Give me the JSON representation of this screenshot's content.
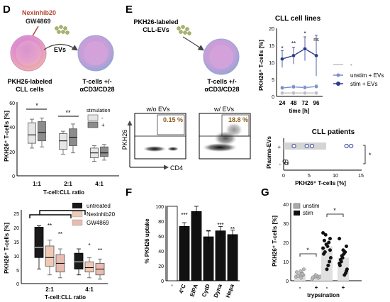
{
  "panels": {
    "D": {
      "letter": "D",
      "schematic": {
        "drug1": "Nexinhib20",
        "drug2": "GW4869",
        "evs": "EVs",
        "left_cell_label": [
          "PKH26-labeled",
          "CLL cells"
        ],
        "right_cell_label": [
          "T-cells +/-",
          "αCD3/CD28"
        ]
      },
      "top_chart": {
        "ylabel": "PKH26⁺ T-cells [%]",
        "yticks": [
          "0",
          "20",
          "40",
          "60"
        ],
        "categories": [
          "1:1",
          "2:1",
          "4:1"
        ],
        "legend_title": "stimulation",
        "legend": [
          "-",
          "+"
        ],
        "sig": [
          "*",
          "**"
        ],
        "xlabel": "T-cell:CLL ratio"
      },
      "bottom_chart": {
        "ylabel": "PKH26⁺ T-cells [%]",
        "yticks": [
          "0",
          "5",
          "10",
          "15",
          "20",
          "25"
        ],
        "categories": [
          "2:1",
          "4:1"
        ],
        "legend": [
          "untreated",
          "Nexinhib20",
          "GW4869"
        ],
        "sig": [
          "**",
          "**",
          "*",
          "**"
        ],
        "xlabel": "T-cell:CLL ratio"
      }
    },
    "E": {
      "letter": "E",
      "schematic": {
        "top_label": [
          "PKH26-labeled",
          "CLL-EVs"
        ],
        "cell_label": [
          "T-cells +/-",
          "αCD3/CD28"
        ]
      },
      "flow": {
        "titles": [
          "w/o EVs",
          "w/ EVs"
        ],
        "percents": [
          "0.15 %",
          "18.8 %"
        ],
        "ylabel": "PKH26",
        "xlabel": "CD4"
      },
      "cell_lines": {
        "title": "CLL cell lines",
        "ylabel": "PKH26⁺ T-cells [%]",
        "yticks": [
          "0",
          "5",
          "10",
          "15",
          "20"
        ],
        "xticks": [
          "24",
          "48",
          "72",
          "96"
        ],
        "xlabel": "time [h]",
        "sig": [
          "*",
          "**",
          "*",
          "ns"
        ],
        "legend": [
          "-",
          "unstim + EVs",
          "stim + EVs"
        ]
      },
      "patients": {
        "title": "CLL patients",
        "ylabel": "Plasma-EVs",
        "row_labels": [
          "+",
          "-"
        ],
        "xticks": [
          "0",
          "5",
          "10",
          "15"
        ],
        "xlabel": "PKH26⁺ T-cells [%]",
        "sig": "*"
      }
    },
    "F": {
      "letter": "F",
      "ylabel": "% PKH26 uptake",
      "yticks": [
        "0",
        "20",
        "40",
        "60",
        "80",
        "100"
      ],
      "categories": [
        "-",
        "4°C",
        "EIPA",
        "CytD",
        "Dyna",
        "Hepa"
      ],
      "sig": [
        "***",
        "",
        "**",
        "***",
        "**"
      ]
    },
    "G": {
      "letter": "G",
      "ylabel": "PKH26⁺ T-cells [%]",
      "yticks": [
        "0",
        "10",
        "20",
        "30",
        "40"
      ],
      "legend": [
        "unstim",
        "stim"
      ],
      "xticks": [
        "-",
        "+",
        "-",
        "+"
      ],
      "xlabel": "trypsination",
      "sig": [
        "*",
        "*"
      ]
    }
  },
  "chart_data": [
    {
      "type": "bar",
      "title": "",
      "xlabel": "T-cell:CLL ratio",
      "ylabel": "PKH26⁺ T-cells [%]",
      "ylim": [
        0,
        60
      ],
      "categories": [
        "1:1",
        "2:1",
        "4:1"
      ],
      "series": [
        {
          "name": "-",
          "q1": [
            27,
            22,
            15
          ],
          "median": [
            34,
            29,
            19
          ],
          "q3": [
            44,
            35,
            23
          ],
          "min": [
            23,
            18,
            12
          ],
          "max": [
            47,
            37,
            25
          ],
          "color": "#e6e6e6"
        },
        {
          "name": "+",
          "q1": [
            29,
            25,
            16
          ],
          "median": [
            36,
            32,
            19
          ],
          "q3": [
            45,
            39,
            24
          ],
          "min": [
            24,
            19,
            13
          ],
          "max": [
            48,
            43,
            26
          ],
          "color": "#8c8c8c"
        }
      ]
    },
    {
      "type": "bar",
      "title": "",
      "xlabel": "T-cell:CLL ratio",
      "ylabel": "PKH26⁺ T-cells [%]",
      "ylim": [
        0,
        25
      ],
      "categories": [
        "2:1",
        "4:1"
      ],
      "series": [
        {
          "name": "untreated",
          "q1": [
            9,
            5
          ],
          "median": [
            12.5,
            7.5
          ],
          "q3": [
            19.5,
            10.5
          ],
          "min": [
            5,
            3
          ],
          "max": [
            20,
            12
          ],
          "color": "#1a1a1a"
        },
        {
          "name": "Nexinhib20",
          "q1": [
            6,
            4
          ],
          "median": [
            9,
            5.5
          ],
          "q3": [
            13,
            7.5
          ],
          "min": [
            3,
            2
          ],
          "max": [
            15,
            9
          ],
          "color": "#f0c9b5"
        },
        {
          "name": "GW4869",
          "q1": [
            4,
            3
          ],
          "median": [
            7,
            5
          ],
          "q3": [
            10,
            7
          ],
          "min": [
            2,
            1.5
          ],
          "max": [
            12,
            8.5
          ],
          "color": "#e8bcb0"
        }
      ]
    },
    {
      "type": "line",
      "title": "CLL cell lines",
      "xlabel": "time [h]",
      "ylabel": "PKH26⁺ T-cells [%]",
      "ylim": [
        0,
        20
      ],
      "x": [
        24,
        48,
        72,
        96
      ],
      "series": [
        {
          "name": "-",
          "values": [
            1,
            1,
            1,
            1
          ],
          "err": [
            0.3,
            0.3,
            0.3,
            0.3
          ],
          "color": "#bfbfbf"
        },
        {
          "name": "unstim + EVs",
          "values": [
            2.5,
            2.8,
            2.6,
            2.9
          ],
          "err": [
            0.5,
            0.5,
            0.5,
            0.5
          ],
          "color": "#7b8fc7"
        },
        {
          "name": "stim + EVs",
          "values": [
            11,
            12,
            14,
            12
          ],
          "err": [
            2.5,
            2.5,
            3.5,
            6
          ],
          "color": "#2a3a8a"
        }
      ]
    },
    {
      "type": "scatter",
      "title": "CLL patients",
      "xlabel": "PKH26⁺ T-cells [%]",
      "ylabel": "Plasma-EVs",
      "xlim": [
        0,
        15
      ],
      "series": [
        {
          "name": "+",
          "values": [
            2,
            4.5,
            5.5,
            12.2,
            13.1
          ]
        },
        {
          "name": "-",
          "values": [
            0.1,
            0.2,
            0.3,
            0.4,
            0.3,
            0.2,
            0.1,
            0.3,
            0.5,
            0.2,
            0.4,
            0.3,
            0.6
          ]
        }
      ]
    },
    {
      "type": "bar",
      "title": "",
      "xlabel": "",
      "ylabel": "% PKH26 uptake",
      "ylim": [
        0,
        100
      ],
      "categories": [
        "-",
        "4°C",
        "EIPA",
        "CytD",
        "Dyna",
        "Hepa"
      ],
      "values": [
        100,
        73,
        93,
        59,
        67,
        62
      ],
      "err": [
        0,
        5,
        7,
        8,
        6,
        6
      ]
    },
    {
      "type": "scatter",
      "title": "",
      "xlabel": "trypsination",
      "ylabel": "PKH26⁺ T-cells [%]",
      "ylim": [
        0,
        40
      ],
      "categories": [
        "-",
        "+",
        "-",
        "+"
      ],
      "series": [
        {
          "name": "unstim",
          "bar_values": [
            3.5,
            2
          ],
          "values": [
            [
              2,
              3,
              4,
              5,
              3,
              2.5,
              4.5,
              6,
              3.5,
              1.5
            ],
            [
              1,
              2,
              1.5,
              2.5,
              3,
              2,
              1.8,
              2.2
            ]
          ]
        },
        {
          "name": "stim",
          "bar_values": [
            18,
            12
          ],
          "values": [
            [
              25,
              22,
              20,
              18,
              19,
              15,
              14,
              12,
              10,
              8,
              6,
              24,
              21,
              17,
              16
            ],
            [
              22,
              18,
              15,
              14,
              12,
              10,
              8,
              6,
              4,
              3,
              16,
              13,
              11,
              9,
              5
            ]
          ]
        }
      ]
    }
  ]
}
